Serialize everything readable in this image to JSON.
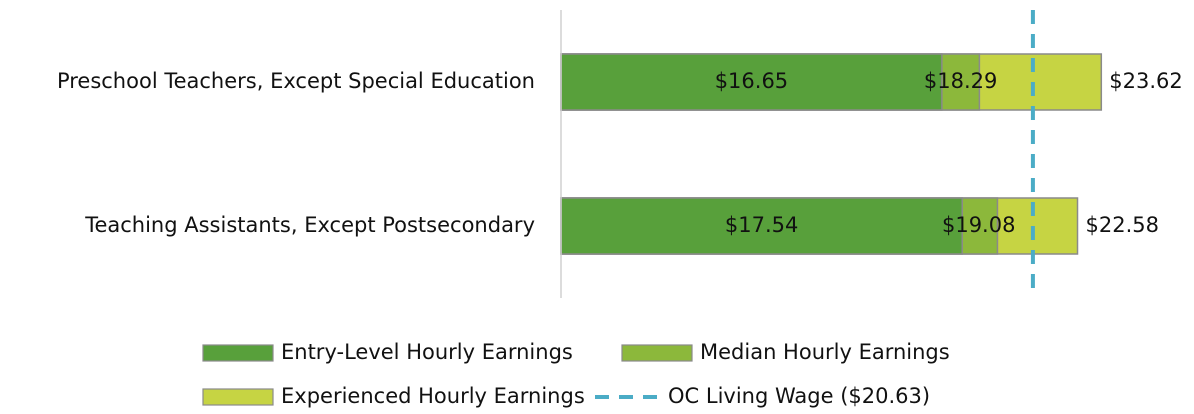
{
  "chart_data": {
    "type": "bar",
    "orientation": "horizontal",
    "categories": [
      "Preschool Teachers, Except Special Education",
      "Teaching Assistants, Except Postsecondary"
    ],
    "xlim": [
      0,
      24
    ],
    "series": [
      {
        "name": "Entry-Level Hourly Earnings",
        "color": "#58a03b",
        "values": [
          16.65,
          17.54
        ],
        "value_labels": [
          "$16.65",
          "$17.54"
        ]
      },
      {
        "name": "Median Hourly Earnings",
        "color": "#8cb83b",
        "values": [
          18.29,
          19.08
        ],
        "value_labels": [
          "$18.29",
          "$19.08"
        ]
      },
      {
        "name": "Experienced Hourly Earnings",
        "color": "#c6d443",
        "values": [
          23.62,
          22.58
        ],
        "value_labels": [
          "$23.62",
          "$22.58"
        ]
      }
    ],
    "reference_line": {
      "name": "OC Living Wage ($20.63)",
      "value": 20.63,
      "color": "#4bacc6"
    }
  }
}
